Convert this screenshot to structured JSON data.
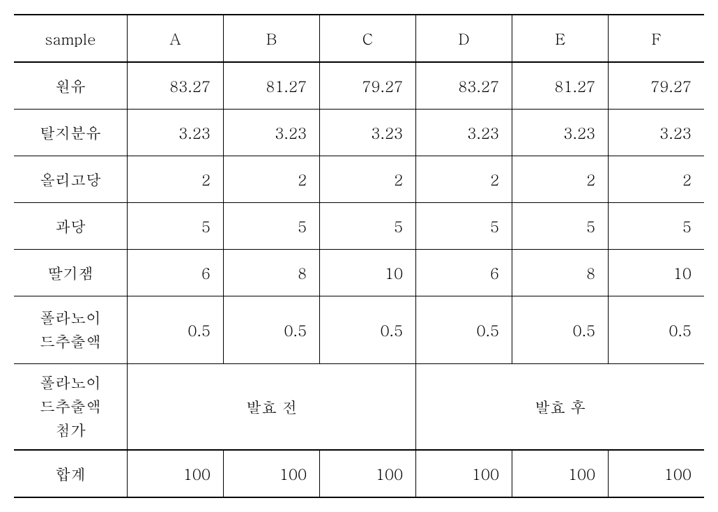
{
  "table": {
    "columns": [
      "sample",
      "A",
      "B",
      "C",
      "D",
      "E",
      "F"
    ],
    "rows": [
      {
        "label": "원유",
        "values": [
          "83.27",
          "81.27",
          "79.27",
          "83.27",
          "81.27",
          "79.27"
        ]
      },
      {
        "label": "탈지분유",
        "values": [
          "3.23",
          "3.23",
          "3.23",
          "3.23",
          "3.23",
          "3.23"
        ]
      },
      {
        "label": "올리고당",
        "values": [
          "2",
          "2",
          "2",
          "2",
          "2",
          "2"
        ]
      },
      {
        "label": "과당",
        "values": [
          "5",
          "5",
          "5",
          "5",
          "5",
          "5"
        ]
      },
      {
        "label": "딸기잼",
        "values": [
          "6",
          "8",
          "10",
          "6",
          "8",
          "10"
        ]
      }
    ],
    "flavonoid_extract": {
      "label_line1": "폴라노이",
      "label_line2": "드추출액",
      "values": [
        "0.5",
        "0.5",
        "0.5",
        "0.5",
        "0.5",
        "0.5"
      ]
    },
    "flavonoid_add": {
      "label_line1": "폴라노이",
      "label_line2": "드추출액",
      "label_line3": "첨가",
      "merged_left": "발효 전",
      "merged_right": "발효 후"
    },
    "total": {
      "label": "합계",
      "values": [
        "100",
        "100",
        "100",
        "100",
        "100",
        "100"
      ]
    }
  }
}
